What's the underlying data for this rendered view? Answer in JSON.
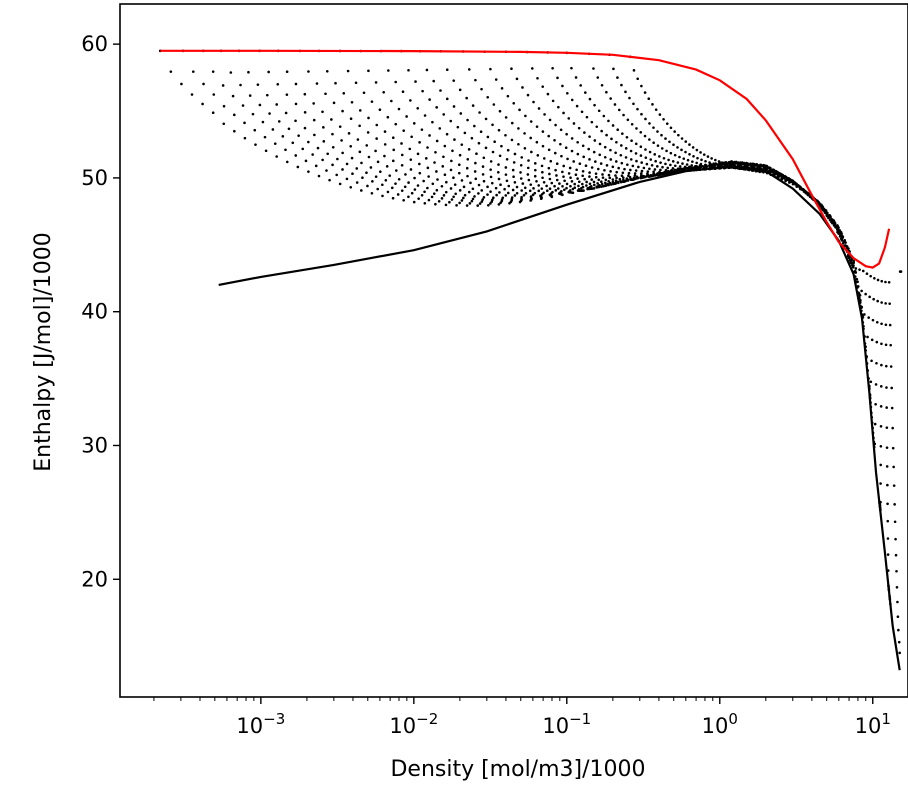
{
  "chart_data": {
    "type": "scatter",
    "title": "",
    "xlabel": "Density [mol/m3]/1000",
    "ylabel": "Enthalpy [J/mol]/1000",
    "x_scale": "log",
    "xlim": [
      0.00012,
      17
    ],
    "ylim": [
      11.2,
      63
    ],
    "x_ticks": [
      {
        "value": 0.001,
        "label": "10^-3"
      },
      {
        "value": 0.01,
        "label": "10^-2"
      },
      {
        "value": 0.1,
        "label": "10^-1"
      },
      {
        "value": 1,
        "label": "10^0"
      },
      {
        "value": 10,
        "label": "10^1"
      }
    ],
    "y_ticks": [
      20,
      30,
      40,
      50,
      60
    ],
    "grid": false,
    "series": [
      {
        "role": "isotherm points",
        "color": "#000000",
        "marker": "dot",
        "isotherms": [
          {
            "rho_start": 0.00022,
            "rho_end": 15.3,
            "h_min": 13.2
          },
          {
            "rho_start": 0.00031,
            "rho_end": 15.1,
            "h_min": 13.8
          },
          {
            "rho_start": 0.00042,
            "rho_end": 15.0,
            "h_min": 14.5
          },
          {
            "rho_start": 0.00055,
            "rho_end": 14.9,
            "h_min": 15.3
          },
          {
            "rho_start": 0.00072,
            "rho_end": 14.7,
            "h_min": 16.2
          },
          {
            "rho_start": 0.00098,
            "rho_end": 14.6,
            "h_min": 17.2
          },
          {
            "rho_start": 0.0013,
            "rho_end": 14.5,
            "h_min": 18.3
          },
          {
            "rho_start": 0.0018,
            "rho_end": 14.4,
            "h_min": 19.4
          },
          {
            "rho_start": 0.0024,
            "rho_end": 14.3,
            "h_min": 20.6
          },
          {
            "rho_start": 0.0033,
            "rho_end": 14.2,
            "h_min": 21.8
          },
          {
            "rho_start": 0.0045,
            "rho_end": 14.1,
            "h_min": 23.0
          },
          {
            "rho_start": 0.0061,
            "rho_end": 14.0,
            "h_min": 24.3
          },
          {
            "rho_start": 0.0083,
            "rho_end": 13.9,
            "h_min": 25.6
          },
          {
            "rho_start": 0.011,
            "rho_end": 13.8,
            "h_min": 27.0
          },
          {
            "rho_start": 0.015,
            "rho_end": 13.7,
            "h_min": 28.4
          },
          {
            "rho_start": 0.021,
            "rho_end": 13.6,
            "h_min": 29.8
          },
          {
            "rho_start": 0.029,
            "rho_end": 13.5,
            "h_min": 31.3
          },
          {
            "rho_start": 0.04,
            "rho_end": 13.4,
            "h_min": 32.8
          },
          {
            "rho_start": 0.055,
            "rho_end": 13.3,
            "h_min": 34.3
          },
          {
            "rho_start": 0.075,
            "rho_end": 13.2,
            "h_min": 35.9
          },
          {
            "rho_start": 0.1,
            "rho_end": 13.1,
            "h_min": 37.5
          },
          {
            "rho_start": 0.14,
            "rho_end": 13.0,
            "h_min": 39.0
          },
          {
            "rho_start": 0.19,
            "rho_end": 12.9,
            "h_min": 40.6
          },
          {
            "rho_start": 0.26,
            "rho_end": 12.8,
            "h_min": 42.2
          }
        ]
      },
      {
        "role": "saturation curve",
        "color": "#000000",
        "points": [
          [
            0.00053,
            42.0
          ],
          [
            0.001,
            42.6
          ],
          [
            0.003,
            43.5
          ],
          [
            0.01,
            44.6
          ],
          [
            0.03,
            46.0
          ],
          [
            0.1,
            48.0
          ],
          [
            0.3,
            49.7
          ],
          [
            0.6,
            50.5
          ],
          [
            1.2,
            50.9
          ],
          [
            2.0,
            50.5
          ],
          [
            3.0,
            49.2
          ],
          [
            4.5,
            47.3
          ],
          [
            6.0,
            45.3
          ],
          [
            7.5,
            42.8
          ],
          [
            8.5,
            39.5
          ],
          [
            9.5,
            34.0
          ],
          [
            10.5,
            28.0
          ],
          [
            12.0,
            22.0
          ],
          [
            13.5,
            16.5
          ],
          [
            15.0,
            13.2
          ]
        ]
      },
      {
        "role": "upper isobar",
        "color": "#ff0000",
        "points": [
          [
            0.00022,
            59.5
          ],
          [
            0.001,
            59.5
          ],
          [
            0.01,
            59.48
          ],
          [
            0.05,
            59.42
          ],
          [
            0.1,
            59.35
          ],
          [
            0.2,
            59.2
          ],
          [
            0.4,
            58.8
          ],
          [
            0.7,
            58.1
          ],
          [
            1.0,
            57.3
          ],
          [
            1.5,
            55.9
          ],
          [
            2.0,
            54.3
          ],
          [
            3.0,
            51.4
          ],
          [
            4.0,
            48.7
          ],
          [
            5.0,
            46.7
          ],
          [
            6.0,
            45.2
          ],
          [
            7.5,
            44.0
          ],
          [
            9.0,
            43.4
          ],
          [
            10.0,
            43.3
          ],
          [
            11.0,
            43.6
          ],
          [
            12.0,
            44.8
          ],
          [
            12.8,
            46.2
          ]
        ]
      }
    ]
  }
}
